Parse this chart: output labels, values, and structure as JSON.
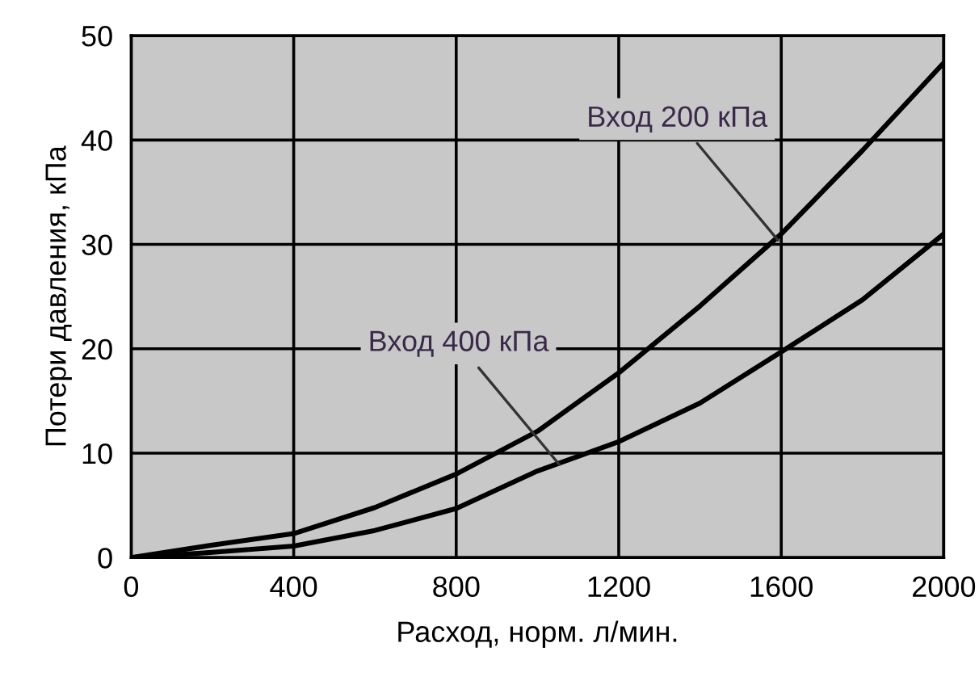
{
  "chart_data": {
    "type": "line",
    "xlabel": "Расход, норм. л/мин.",
    "ylabel": "Потери давления, кПа",
    "x": [
      0,
      200,
      400,
      600,
      800,
      1000,
      1200,
      1400,
      1600,
      1800,
      2000
    ],
    "series": [
      {
        "color": "#000000",
        "values": [
          0,
          1.2,
          2.3,
          4.8,
          8.0,
          12.1,
          17.7,
          24.1,
          31,
          39,
          47.4
        ]
      },
      {
        "color": "#000000",
        "values": [
          0,
          0.5,
          1.1,
          2.6,
          4.7,
          8.3,
          11.1,
          14.8,
          19.7,
          24.7,
          31
        ]
      }
    ],
    "annotations": [
      {
        "text": "Вход 200 кПа",
        "x": 1592,
        "y": 30.4
      },
      {
        "text": "Вход 400 кПа",
        "x": 1054,
        "y": 8.9
      }
    ],
    "xlim": [
      0,
      2000
    ],
    "ylim": [
      0,
      50
    ],
    "xticks": [
      0,
      400,
      800,
      1200,
      1600,
      2000
    ],
    "yticks": [
      0,
      10,
      20,
      30,
      40,
      50
    ],
    "grid": true,
    "marker": "none",
    "line_style": "solid",
    "legend": false
  }
}
